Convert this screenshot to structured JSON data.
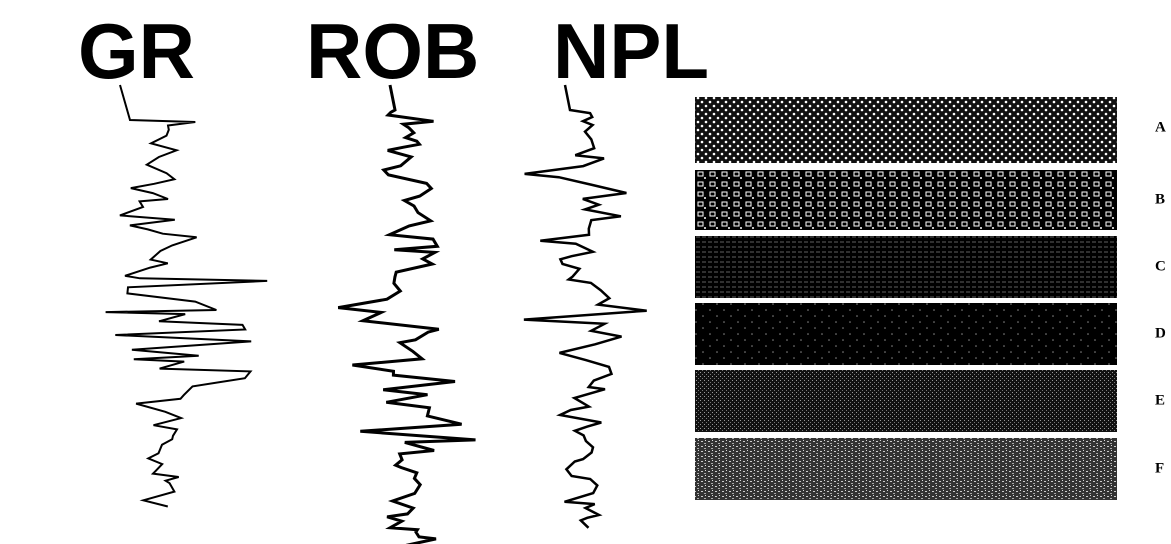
{
  "curve_labels": [
    "GR",
    "ROB",
    "NPL"
  ],
  "panel_labels": [
    "A",
    "B",
    "C",
    "D",
    "E",
    "F"
  ]
}
